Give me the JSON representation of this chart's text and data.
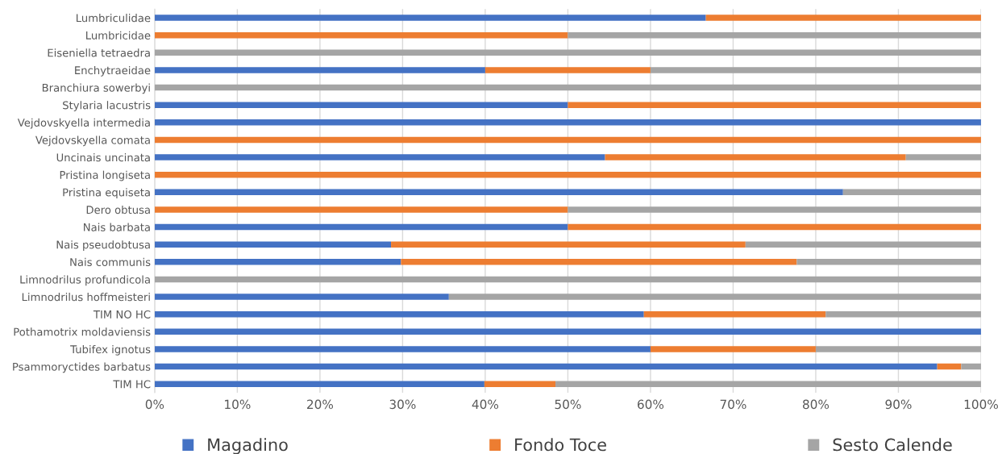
{
  "chart_data": {
    "type": "bar",
    "orientation": "horizontal",
    "stacked": true,
    "categories": [
      "Lumbriculidae",
      "Lumbricidae",
      "Eiseniella tetraedra",
      "Enchytraeidae",
      "Branchiura sowerbyi",
      "Stylaria lacustris",
      "Vejdovskyella intermedia",
      "Vejdovskyella comata",
      "Uncinais uncinata",
      "Pristina longiseta",
      "Pristina equiseta",
      "Dero obtusa",
      "Nais barbata",
      "Nais pseudobtusa",
      "Nais communis",
      "Limnodrilus profundicola",
      "Limnodrilus hoffmeisteri",
      "TIM NO HC",
      "Pothamotrix moldaviensis",
      "Tubifex ignotus",
      "Psammoryctides barbatus",
      "TIM HC"
    ],
    "series": [
      {
        "name": "Magadino",
        "color": "#4472c4",
        "values": [
          66.7,
          0,
          0,
          40,
          0,
          50,
          100,
          0,
          54.5,
          0,
          83.3,
          0,
          50,
          28.6,
          29.8,
          0,
          35.6,
          59.2,
          100,
          60,
          94.7,
          39.9
        ]
      },
      {
        "name": "Fondo Toce",
        "color": "#ed7d31",
        "values": [
          33.3,
          50,
          0,
          20,
          0,
          50,
          0,
          100,
          36.4,
          100,
          0,
          50,
          50,
          42.9,
          47.9,
          0,
          0,
          22.0,
          0,
          20,
          2.9,
          8.6
        ]
      },
      {
        "name": "Sesto Calende",
        "color": "#a5a5a5",
        "values": [
          0,
          50,
          100,
          40,
          100,
          0,
          0,
          0,
          9.1,
          0,
          16.7,
          50,
          0,
          28.5,
          22.3,
          100,
          64.4,
          18.8,
          0,
          20,
          2.4,
          51.5
        ]
      }
    ],
    "xlim": [
      0,
      100
    ],
    "xticks": [
      {
        "value": 0,
        "label": "0%"
      },
      {
        "value": 10,
        "label": "10%"
      },
      {
        "value": 20,
        "label": "20%"
      },
      {
        "value": 30,
        "label": "30%"
      },
      {
        "value": 40,
        "label": "40%"
      },
      {
        "value": 50,
        "label": "50%"
      },
      {
        "value": 60,
        "label": "60%"
      },
      {
        "value": 70,
        "label": "70%"
      },
      {
        "value": 80,
        "label": "80%"
      },
      {
        "value": 90,
        "label": "90%"
      },
      {
        "value": 100,
        "label": "100%"
      }
    ],
    "grid": "x",
    "legend": "bottom"
  }
}
